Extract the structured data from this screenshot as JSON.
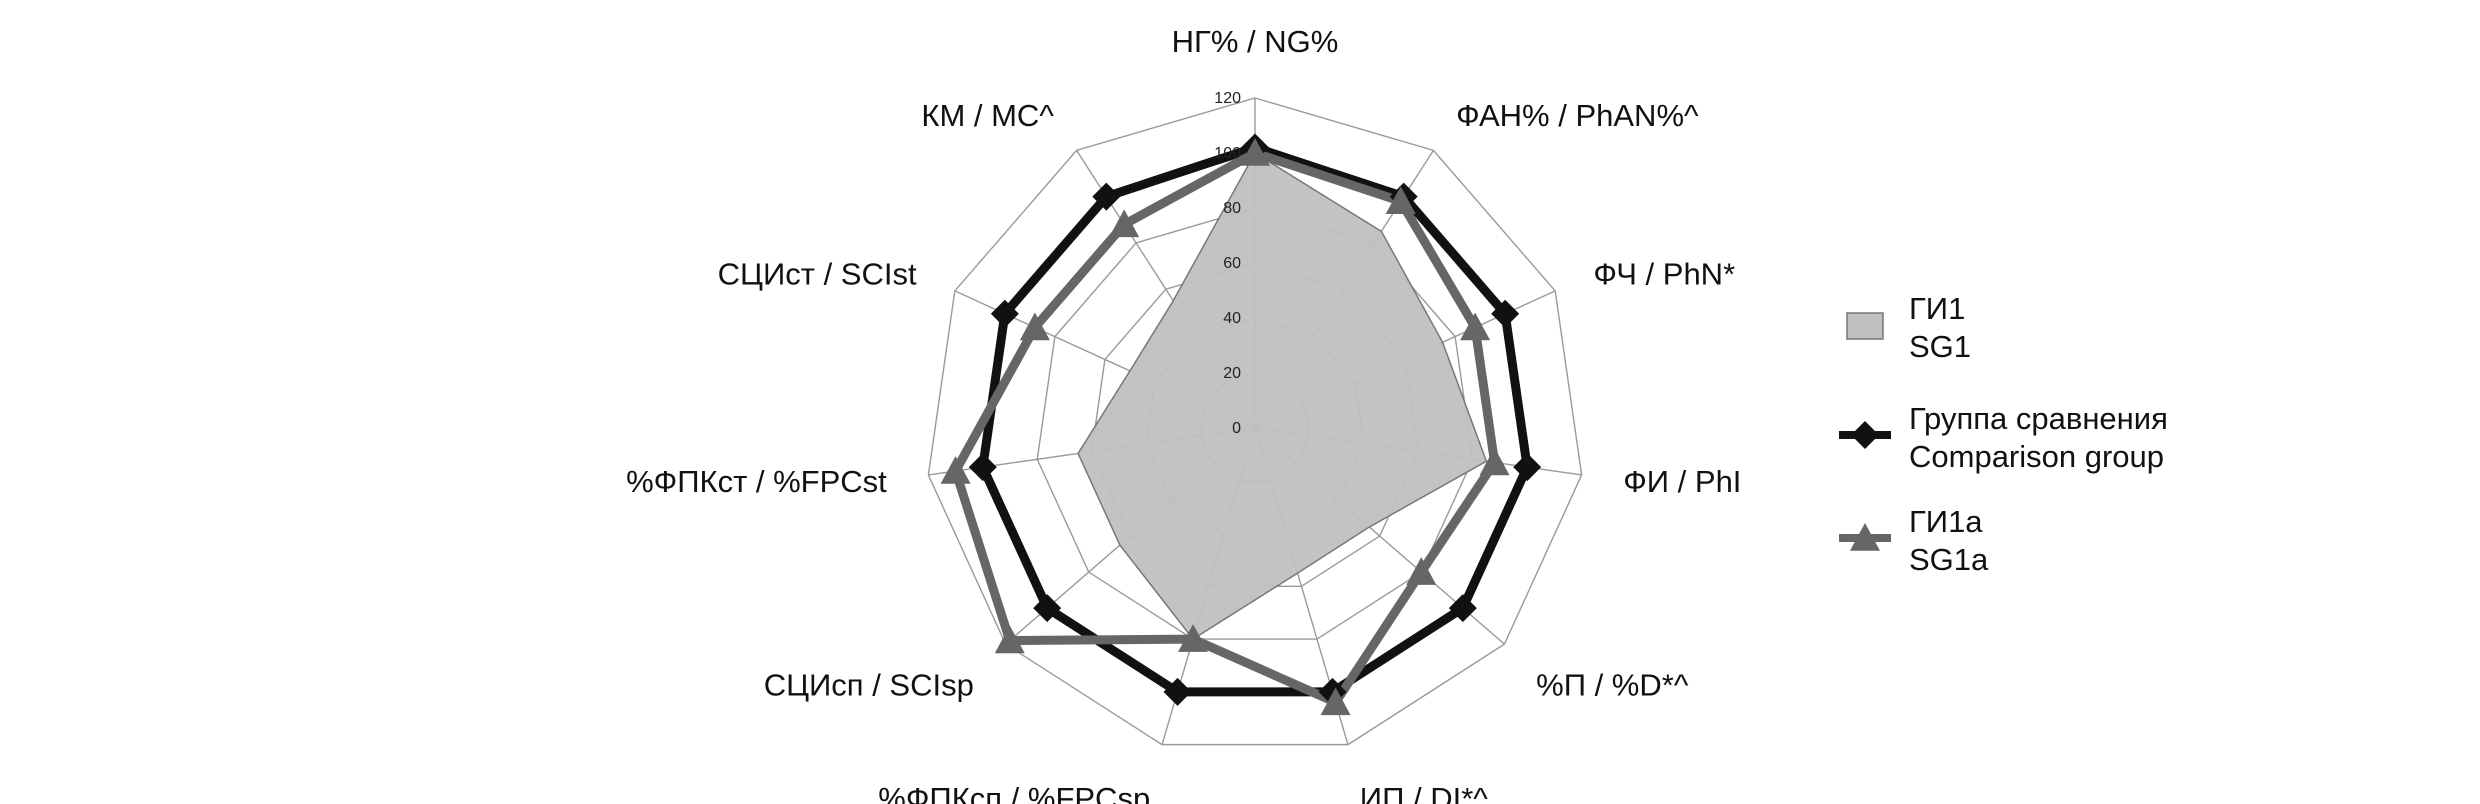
{
  "chart_data": {
    "type": "radar",
    "axes": [
      "НГ% / NG%",
      "ФАН% / PhAN%^",
      "ФЧ / PhN*",
      "ФИ / PhI",
      "%П / %D*^",
      "ИП / DI*^",
      "%ФПКсп / %FPCsp",
      "СЦИсп / SCIsp",
      "%ФПКст / %FPCst",
      "СЦИст / SCIst",
      "КМ / MC^"
    ],
    "ticks": [
      0,
      20,
      40,
      60,
      80,
      100,
      120
    ],
    "rlim": [
      0,
      120
    ],
    "grid": true,
    "legend_position": "right",
    "series": [
      {
        "name": "ГИ1 SG1",
        "legend_lines": [
          "ГИ1",
          "SG1"
        ],
        "style": "area",
        "color": "#c0c0c0",
        "stroke": "#777777",
        "values": [
          100,
          85,
          75,
          85,
          55,
          55,
          80,
          65,
          65,
          50,
          55
        ]
      },
      {
        "name": "Группа сравнения Comparison group",
        "legend_lines": [
          "Группа сравнения",
          "Comparison group"
        ],
        "style": "line-diamond",
        "color": "#111111",
        "values": [
          102,
          100,
          100,
          100,
          100,
          100,
          100,
          100,
          100,
          100,
          100
        ]
      },
      {
        "name": "ГИ1a SG1a",
        "legend_lines": [
          "ГИ1а",
          "SG1а"
        ],
        "style": "line-triangle",
        "color": "#666666",
        "values": [
          100,
          98,
          88,
          88,
          80,
          104,
          80,
          118,
          110,
          88,
          88
        ]
      }
    ]
  }
}
